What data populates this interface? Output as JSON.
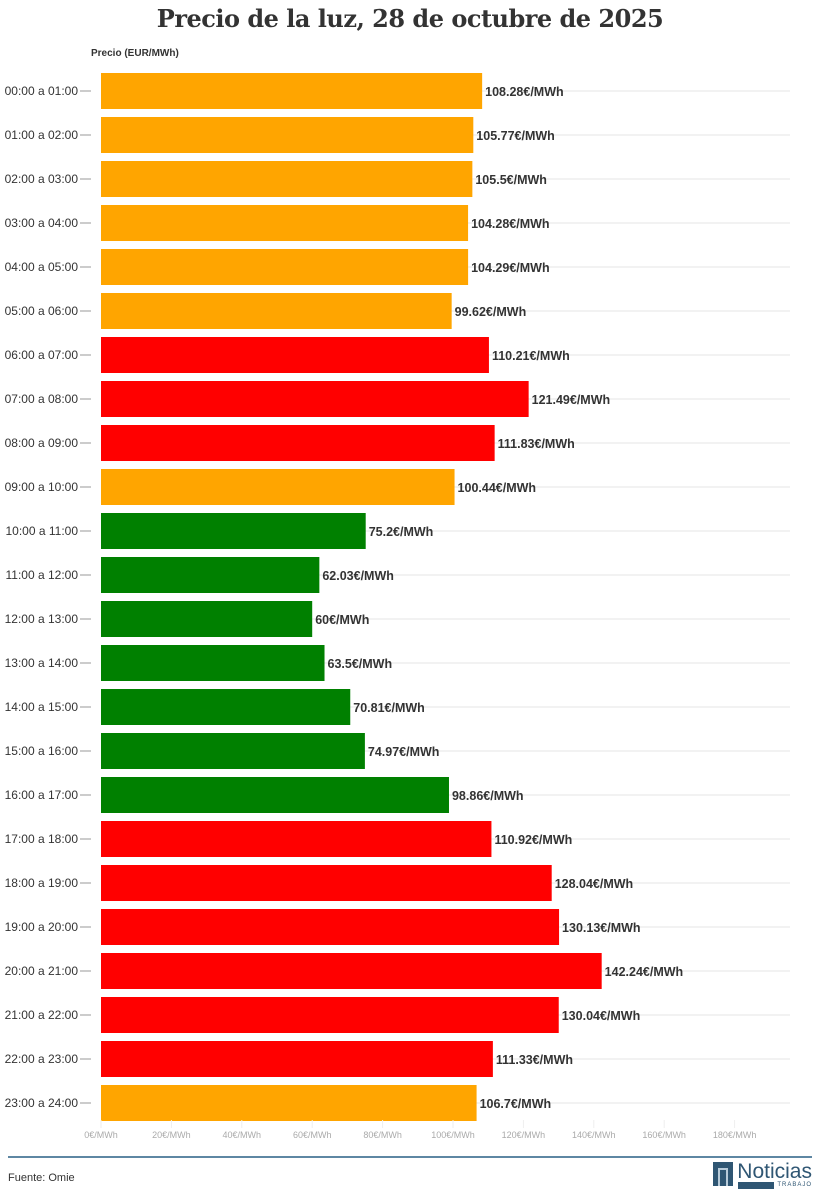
{
  "title": "Precio de la luz, 28 de octubre de 2025",
  "source": "Fuente: Omie",
  "logo": {
    "name": "Noticias",
    "sub": "TRABAJO"
  },
  "chart_data": {
    "type": "bar",
    "orientation": "horizontal",
    "title": "Precio de la luz, 28 de octubre de 2025",
    "ylabel": "Precio (EUR/MWh)",
    "xlim": [
      0,
      180
    ],
    "grid": true,
    "xticks": [
      "0€/MWh",
      "20€/MWh",
      "40€/MWh",
      "60€/MWh",
      "80€/MWh",
      "100€/MWh",
      "120€/MWh",
      "140€/MWh",
      "160€/MWh",
      "180€/MWh"
    ],
    "colors": {
      "orange": "#FFA500",
      "red": "#FF0000",
      "green": "#008000"
    },
    "categories": [
      "00:00 a 01:00",
      "01:00 a 02:00",
      "02:00 a 03:00",
      "03:00 a 04:00",
      "04:00 a 05:00",
      "05:00 a 06:00",
      "06:00 a 07:00",
      "07:00 a 08:00",
      "08:00 a 09:00",
      "09:00 a 10:00",
      "10:00 a 11:00",
      "11:00 a 12:00",
      "12:00 a 13:00",
      "13:00 a 14:00",
      "14:00 a 15:00",
      "15:00 a 16:00",
      "16:00 a 17:00",
      "17:00 a 18:00",
      "18:00 a 19:00",
      "19:00 a 20:00",
      "20:00 a 21:00",
      "21:00 a 22:00",
      "22:00 a 23:00",
      "23:00 a 24:00"
    ],
    "values": [
      108.28,
      105.77,
      105.5,
      104.28,
      104.29,
      99.62,
      110.21,
      121.49,
      111.83,
      100.44,
      75.2,
      62.03,
      60,
      63.5,
      70.81,
      74.97,
      98.86,
      110.92,
      128.04,
      130.13,
      142.24,
      130.04,
      111.33,
      106.7
    ],
    "labels": [
      "108.28€/MWh",
      "105.77€/MWh",
      "105.5€/MWh",
      "104.28€/MWh",
      "104.29€/MWh",
      "99.62€/MWh",
      "110.21€/MWh",
      "121.49€/MWh",
      "111.83€/MWh",
      "100.44€/MWh",
      "75.2€/MWh",
      "62.03€/MWh",
      "60€/MWh",
      "63.5€/MWh",
      "70.81€/MWh",
      "74.97€/MWh",
      "98.86€/MWh",
      "110.92€/MWh",
      "128.04€/MWh",
      "130.13€/MWh",
      "142.24€/MWh",
      "130.04€/MWh",
      "111.33€/MWh",
      "106.7€/MWh"
    ],
    "bar_colors": [
      "orange",
      "orange",
      "orange",
      "orange",
      "orange",
      "orange",
      "red",
      "red",
      "red",
      "orange",
      "green",
      "green",
      "green",
      "green",
      "green",
      "green",
      "green",
      "red",
      "red",
      "red",
      "red",
      "red",
      "red",
      "orange"
    ]
  }
}
